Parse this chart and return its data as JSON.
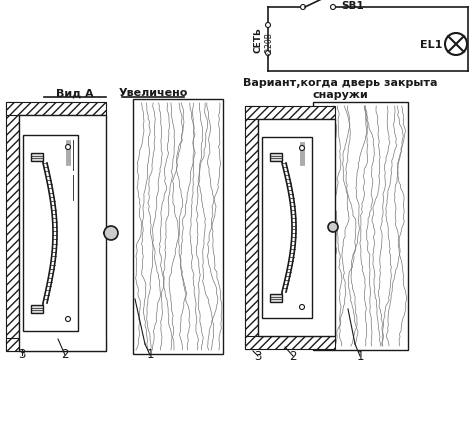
{
  "bg_color": "#ffffff",
  "lc": "#1a1a1a",
  "label_vid_a": "Вид А",
  "label_uv": "Увеличено",
  "label_variant_1": "Вариант,когда дверь закрыта",
  "label_variant_2": "снаружи",
  "label_set": "СЕТЬ",
  "label_volt": "~220В",
  "label_sb1": "SB1",
  "label_el1": "ЕL1",
  "label_1": "1",
  "label_2": "2",
  "label_3": "3",
  "fig_width": 4.74,
  "fig_height": 4.27,
  "dpi": 100
}
